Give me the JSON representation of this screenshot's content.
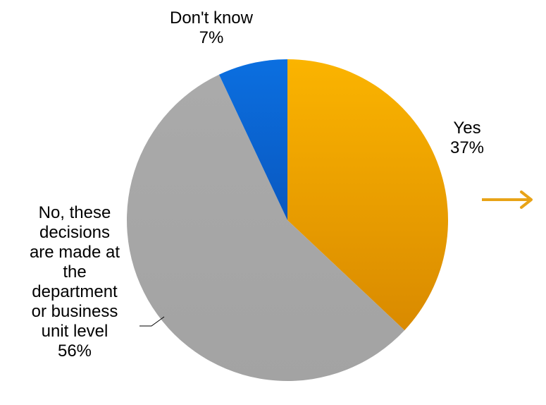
{
  "chart_data": {
    "type": "pie",
    "categories": [
      "Yes",
      "No, these decisions are made at the department or business unit level",
      "Don't know"
    ],
    "values": [
      37,
      56,
      7
    ],
    "colors": [
      "#F0A202",
      "#A6A6A6",
      "#0A63D2"
    ],
    "data_labels": [
      {
        "lines": [
          "Yes",
          "37%"
        ]
      },
      {
        "lines": [
          "No, these",
          "decisions",
          "are made at",
          "the",
          "department",
          "or business",
          "unit level",
          "56%"
        ]
      },
      {
        "lines": [
          "Don't know",
          "7%"
        ]
      }
    ],
    "start_angle_deg": 0,
    "direction": "clockwise",
    "legend": "none"
  },
  "arrow": {
    "color": "#E8A317",
    "direction": "right",
    "icon": "right-arrow-icon"
  }
}
